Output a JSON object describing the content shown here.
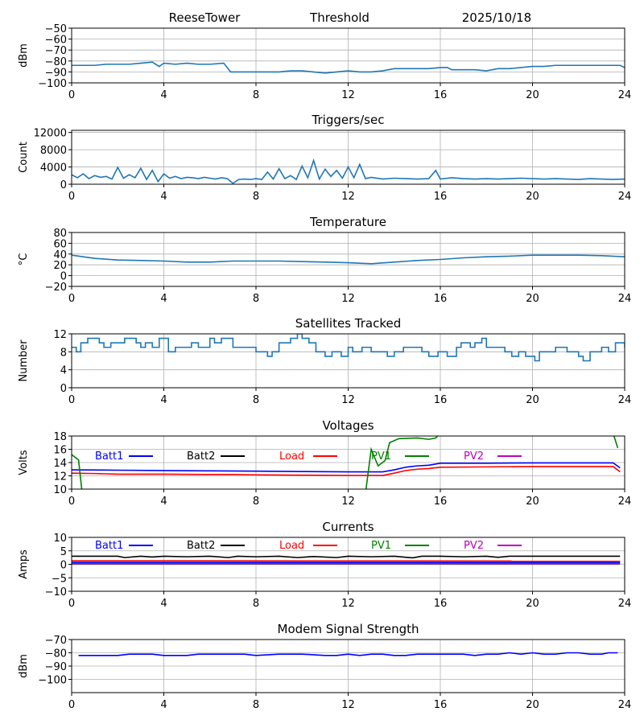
{
  "chart_data": [
    {
      "type": "line",
      "title_parts": [
        "ReeseTower",
        "Threshold",
        "2025/10/18"
      ],
      "ylabel": "dBm",
      "xlim": [
        0,
        24
      ],
      "xticks": [
        0,
        4,
        8,
        12,
        16,
        20,
        24
      ],
      "ylim": [
        -100,
        -50
      ],
      "yticks": [
        -100,
        -90,
        -80,
        -70,
        -60,
        -50
      ],
      "grid": true,
      "series": [
        {
          "name": "signal",
          "color": "#1f77b4",
          "x": [
            0,
            0.5,
            1,
            1.5,
            2,
            2.5,
            3,
            3.5,
            3.8,
            4,
            4.5,
            5,
            5.5,
            6,
            6.6,
            6.9,
            7.5,
            8,
            8.5,
            9,
            9.5,
            10,
            10.5,
            11,
            11.5,
            12,
            12.5,
            13,
            13.5,
            14,
            14.5,
            15,
            15.5,
            16,
            16.3,
            16.5,
            17,
            17.5,
            18,
            18.5,
            19,
            19.5,
            20,
            20.5,
            21,
            22,
            23,
            23.8,
            24
          ],
          "y": [
            -84,
            -84,
            -84,
            -83,
            -83,
            -83,
            -82,
            -81,
            -85,
            -82,
            -83,
            -82,
            -83,
            -83,
            -82,
            -90,
            -90,
            -90,
            -90,
            -90,
            -89,
            -89,
            -90,
            -91,
            -90,
            -89,
            -90,
            -90,
            -89,
            -87,
            -87,
            -87,
            -87,
            -86,
            -86,
            -88,
            -88,
            -88,
            -89,
            -87,
            -87,
            -86,
            -85,
            -85,
            -84,
            -84,
            -84,
            -84,
            -86
          ]
        }
      ]
    },
    {
      "type": "line",
      "title": "Triggers/sec",
      "ylabel": "Count",
      "xlim": [
        0,
        24
      ],
      "xticks": [
        0,
        4,
        8,
        12,
        16,
        20,
        24
      ],
      "ylim": [
        0,
        12500
      ],
      "yticks": [
        0,
        4000,
        8000,
        12000
      ],
      "grid": true,
      "series": [
        {
          "name": "triggers",
          "color": "#1f77b4",
          "x": [
            0,
            0.25,
            0.5,
            0.75,
            1,
            1.25,
            1.5,
            1.75,
            2,
            2.25,
            2.5,
            2.75,
            3,
            3.25,
            3.5,
            3.75,
            4,
            4.25,
            4.5,
            4.75,
            5,
            5.25,
            5.5,
            5.75,
            6,
            6.25,
            6.5,
            6.75,
            7,
            7.25,
            7.5,
            7.75,
            8,
            8.25,
            8.5,
            8.75,
            9,
            9.25,
            9.5,
            9.75,
            10,
            10.25,
            10.5,
            10.75,
            11,
            11.25,
            11.5,
            11.75,
            12,
            12.25,
            12.5,
            12.75,
            13,
            13.5,
            14,
            14.5,
            15,
            15.5,
            15.8,
            16,
            16.5,
            17,
            17.5,
            18,
            18.5,
            19,
            19.5,
            20,
            20.5,
            21,
            21.5,
            22,
            22.5,
            23,
            23.5,
            24
          ],
          "y": [
            2200,
            1500,
            2400,
            1300,
            2000,
            1600,
            1800,
            1200,
            3900,
            1400,
            2200,
            1500,
            3700,
            1100,
            3200,
            600,
            2400,
            1400,
            1800,
            1300,
            1600,
            1500,
            1300,
            1600,
            1400,
            1200,
            1500,
            1300,
            200,
            1100,
            1200,
            1100,
            1300,
            1100,
            2800,
            1200,
            3600,
            1300,
            2000,
            1100,
            4200,
            1500,
            5500,
            1200,
            3500,
            1800,
            3200,
            1400,
            4000,
            1500,
            4600,
            1300,
            1600,
            1200,
            1400,
            1300,
            1200,
            1300,
            3200,
            1200,
            1500,
            1300,
            1200,
            1300,
            1200,
            1300,
            1400,
            1300,
            1200,
            1300,
            1200,
            1100,
            1300,
            1200,
            1100,
            1200
          ]
        }
      ]
    },
    {
      "type": "line",
      "title": "Temperature",
      "ylabel": "°C",
      "xlim": [
        0,
        24
      ],
      "xticks": [
        0,
        4,
        8,
        12,
        16,
        20,
        24
      ],
      "ylim": [
        -20,
        80
      ],
      "yticks": [
        -20,
        0,
        20,
        40,
        60,
        80
      ],
      "grid": true,
      "series": [
        {
          "name": "temperature",
          "color": "#1f77b4",
          "x": [
            0,
            1,
            2,
            3,
            4,
            5,
            6,
            7,
            8,
            9,
            10,
            11,
            12,
            13,
            14,
            15,
            16,
            17,
            18,
            19,
            20,
            21,
            22,
            23,
            24
          ],
          "y": [
            38,
            32,
            29,
            28,
            27,
            25,
            25,
            27,
            27,
            27,
            26,
            25,
            24,
            22,
            25,
            28,
            30,
            33,
            35,
            36,
            38,
            38,
            38,
            37,
            35
          ]
        }
      ]
    },
    {
      "type": "line",
      "title": "Satellites Tracked",
      "ylabel": "Number",
      "xlim": [
        0,
        24
      ],
      "xticks": [
        0,
        4,
        8,
        12,
        16,
        20,
        24
      ],
      "ylim": [
        0,
        12
      ],
      "yticks": [
        0,
        4,
        8,
        12
      ],
      "grid": true,
      "step": true,
      "series": [
        {
          "name": "satellites",
          "color": "#1f77b4",
          "x": [
            0,
            0.2,
            0.4,
            0.7,
            1.2,
            1.4,
            1.7,
            2.3,
            2.8,
            3.0,
            3.2,
            3.5,
            3.8,
            4.2,
            4.5,
            5.2,
            5.5,
            6.0,
            6.2,
            6.5,
            7.0,
            7.3,
            8.0,
            8.5,
            8.7,
            9.0,
            9.5,
            9.8,
            10.0,
            10.3,
            10.6,
            11.0,
            11.3,
            11.7,
            12.0,
            12.2,
            12.6,
            13.0,
            13.7,
            14.0,
            14.4,
            15.0,
            15.2,
            15.5,
            15.9,
            16.3,
            16.7,
            16.9,
            17.3,
            17.5,
            17.8,
            18.0,
            18.4,
            18.8,
            19.1,
            19.4,
            19.7,
            20.1,
            20.3,
            21.0,
            21.5,
            21.8,
            22.0,
            22.2,
            22.5,
            23.0,
            23.3,
            23.6,
            24
          ],
          "y": [
            9,
            8,
            10,
            11,
            10,
            9,
            10,
            11,
            10,
            9,
            10,
            9,
            11,
            8,
            9,
            10,
            9,
            11,
            10,
            11,
            9,
            9,
            8,
            7,
            8,
            10,
            11,
            12,
            11,
            10,
            8,
            7,
            8,
            7,
            9,
            8,
            9,
            8,
            7,
            8,
            9,
            9,
            8,
            7,
            8,
            7,
            9,
            10,
            9,
            10,
            11,
            9,
            9,
            8,
            7,
            8,
            7,
            6,
            8,
            9,
            8,
            8,
            7,
            6,
            8,
            9,
            8,
            10,
            9
          ]
        }
      ]
    },
    {
      "type": "line",
      "title": "Voltages",
      "ylabel": "Volts",
      "xlim": [
        0,
        24
      ],
      "xticks": [
        0,
        4,
        8,
        12,
        16,
        20,
        24
      ],
      "ylim": [
        10,
        18
      ],
      "yticks": [
        10,
        12,
        14,
        16,
        18
      ],
      "grid": true,
      "legend": "inside-top, horizontal",
      "series": [
        {
          "name": "Batt1",
          "color": "#0000ff",
          "x": [
            0,
            2,
            4,
            6,
            8,
            10,
            12,
            13.5,
            14,
            14.5,
            15,
            15.5,
            16,
            18,
            20,
            22,
            23.5,
            23.8
          ],
          "y": [
            12.9,
            12.85,
            12.8,
            12.75,
            12.7,
            12.65,
            12.6,
            12.6,
            12.9,
            13.3,
            13.5,
            13.6,
            13.9,
            13.9,
            13.95,
            13.95,
            13.95,
            13.2
          ]
        },
        {
          "name": "Batt2",
          "color": "#000000",
          "x": [],
          "y": []
        },
        {
          "name": "Load",
          "color": "#ff0000",
          "x": [
            0,
            1,
            2,
            4,
            6,
            7,
            8,
            10,
            12,
            13.5,
            14,
            14.5,
            15,
            15.5,
            16,
            18,
            20,
            22,
            23.5,
            23.8
          ],
          "y": [
            12.4,
            12.35,
            12.25,
            12.25,
            12.2,
            12.2,
            12.15,
            12.1,
            12.05,
            12.05,
            12.4,
            12.8,
            13.0,
            13.1,
            13.3,
            13.35,
            13.4,
            13.4,
            13.4,
            12.6
          ]
        },
        {
          "name": "PV1",
          "color": "#008000",
          "x": [
            0,
            0.3,
            0.5,
            12.7,
            13,
            13.3,
            13.6,
            13.8,
            14.2,
            15,
            15.5,
            15.8,
            16,
            23.4,
            23.7
          ],
          "y": [
            15.2,
            14.4,
            8,
            8,
            16,
            13.5,
            14.3,
            17,
            17.6,
            17.7,
            17.5,
            17.7,
            18.5,
            19.5,
            16.2
          ]
        },
        {
          "name": "PV2",
          "color": "#bf00bf",
          "x": [],
          "y": []
        }
      ]
    },
    {
      "type": "line",
      "title": "Currents",
      "ylabel": "Amps",
      "xlim": [
        0,
        24
      ],
      "xticks": [
        0,
        4,
        8,
        12,
        16,
        20,
        24
      ],
      "ylim": [
        -10,
        10
      ],
      "yticks": [
        -10,
        -5,
        0,
        5,
        10
      ],
      "grid": true,
      "legend": "inside-top, horizontal",
      "series": [
        {
          "name": "Batt1",
          "color": "#0000ff",
          "x": [
            0,
            23.8
          ],
          "y": [
            0.7,
            0.7
          ]
        },
        {
          "name": "Batt2",
          "color": "#000000",
          "x": [
            0,
            1,
            2,
            2.3,
            3,
            3.5,
            4,
            5,
            6,
            6.8,
            7.2,
            8,
            9,
            9.8,
            10.5,
            11.5,
            12,
            13,
            14,
            14.8,
            15.2,
            16,
            17,
            18,
            18.5,
            19,
            20,
            22,
            23.8
          ],
          "y": [
            3,
            3,
            3,
            2.5,
            3,
            2.7,
            3,
            2.8,
            3,
            2.5,
            3,
            2.8,
            3,
            2.5,
            2.9,
            2.5,
            3,
            2.8,
            3,
            2.4,
            3,
            3,
            2.8,
            3,
            2.6,
            3,
            3,
            3,
            3
          ]
        },
        {
          "name": "Load",
          "color": "#ff0000",
          "x": [
            0,
            23.8
          ],
          "y": [
            1.3,
            1.2
          ]
        },
        {
          "name": "PV1",
          "color": "#008000",
          "x": [
            0,
            23.8
          ],
          "y": [
            0.1,
            0.1
          ]
        },
        {
          "name": "PV2",
          "color": "#bf00bf",
          "x": [
            0,
            23.8
          ],
          "y": [
            0.2,
            0.2
          ]
        }
      ]
    },
    {
      "type": "line",
      "title": "Modem Signal Strength",
      "ylabel": "dBm",
      "xlim": [
        0,
        24
      ],
      "xticks": [
        0,
        4,
        8,
        12,
        16,
        20,
        24
      ],
      "ylim": [
        -110,
        -70
      ],
      "yticks": [
        -100,
        -90,
        -80,
        -70
      ],
      "grid": true,
      "series": [
        {
          "name": "modem",
          "color": "#0000ff",
          "x": [
            0.3,
            1,
            2,
            2.5,
            3,
            3.5,
            4,
            5,
            5.5,
            6,
            7,
            7.5,
            8,
            9,
            10,
            11,
            11.5,
            12,
            12.5,
            13,
            13.5,
            14,
            14.5,
            15,
            15.5,
            16,
            17,
            17.5,
            18,
            18.5,
            19,
            19.5,
            20,
            20.5,
            21,
            21.5,
            22,
            22.5,
            23,
            23.3,
            23.7
          ],
          "y": [
            -82,
            -82,
            -82,
            -81,
            -81,
            -81,
            -82,
            -82,
            -81,
            -81,
            -81,
            -81,
            -82,
            -81,
            -81,
            -82,
            -82,
            -81,
            -82,
            -81,
            -81,
            -82,
            -82,
            -81,
            -81,
            -81,
            -81,
            -82,
            -81,
            -81,
            -80,
            -81,
            -80,
            -81,
            -81,
            -80,
            -80,
            -81,
            -81,
            -80,
            -80
          ]
        }
      ]
    }
  ]
}
